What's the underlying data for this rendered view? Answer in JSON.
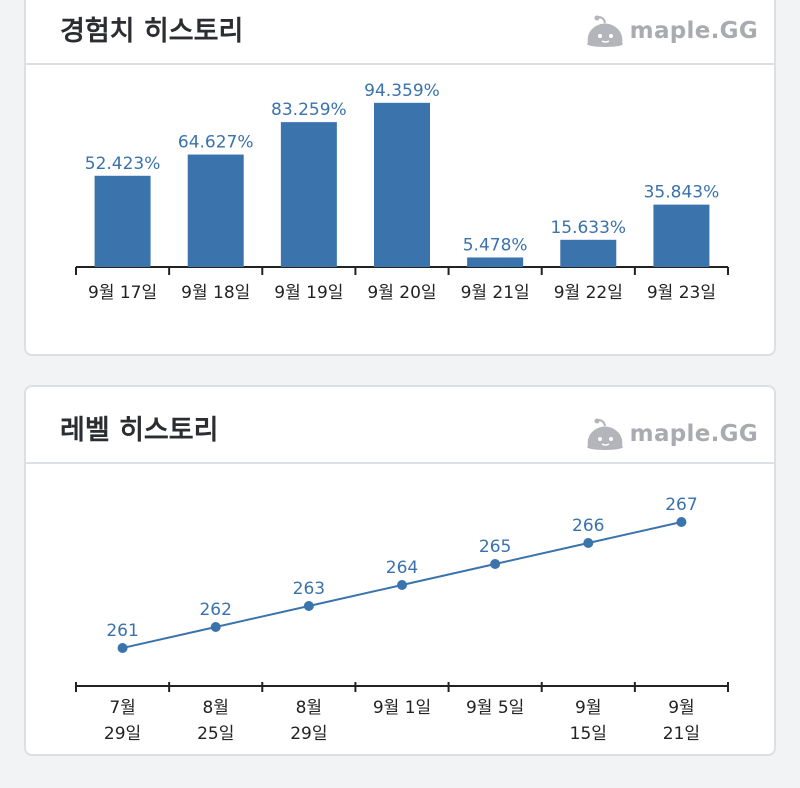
{
  "brand": {
    "name": "maple.GG",
    "logo_icon": "mushroom-slime-icon"
  },
  "colors": {
    "accent": "#3b73ad",
    "axis": "#222222",
    "muted": "#a9abb0"
  },
  "chart_data": [
    {
      "type": "bar",
      "title": "경험치 히스토리",
      "categories": [
        "9월 17일",
        "9월 18일",
        "9월 19일",
        "9월 20일",
        "9월 21일",
        "9월 22일",
        "9월 23일"
      ],
      "values": [
        52.423,
        64.627,
        83.259,
        94.359,
        5.478,
        15.633,
        35.843
      ],
      "value_labels": [
        "52.423%",
        "64.627%",
        "83.259%",
        "94.359%",
        "5.478%",
        "15.633%",
        "35.843%"
      ],
      "ylim": [
        0,
        100
      ],
      "grid": false,
      "xlabel": "",
      "ylabel": ""
    },
    {
      "type": "line",
      "title": "레벨 히스토리",
      "categories": [
        [
          "7월",
          "29일"
        ],
        [
          "8월",
          "25일"
        ],
        [
          "8월",
          "29일"
        ],
        [
          "9월 1일"
        ],
        [
          "9월 5일"
        ],
        [
          "9월",
          "15일"
        ],
        [
          "9월",
          "21일"
        ]
      ],
      "values": [
        261,
        262,
        263,
        264,
        265,
        266,
        267
      ],
      "value_labels": [
        "261",
        "262",
        "263",
        "264",
        "265",
        "266",
        "267"
      ],
      "grid": false,
      "xlabel": "",
      "ylabel": ""
    }
  ]
}
